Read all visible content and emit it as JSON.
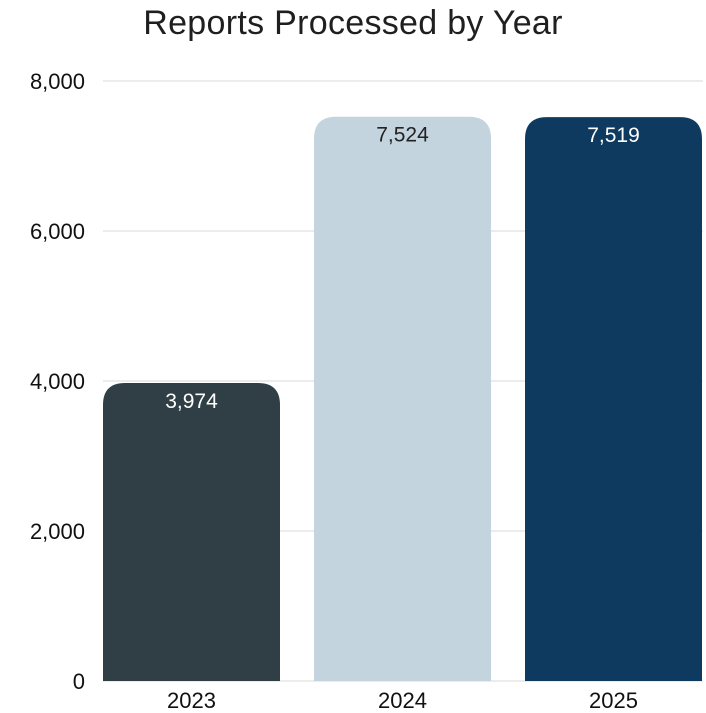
{
  "chart_data": {
    "type": "bar",
    "title": "Reports Processed by Year",
    "categories": [
      "2023",
      "2024",
      "2025"
    ],
    "values": [
      3974,
      7524,
      7519
    ],
    "value_labels": [
      "3,974",
      "7,524",
      "7,519"
    ],
    "bar_colors": [
      "#2f3f45",
      "#c3d4de",
      "#0f3a60"
    ],
    "label_colors": [
      "#ffffff",
      "#222222",
      "#ffffff"
    ],
    "ylim": [
      0,
      8000
    ],
    "yticks": [
      0,
      2000,
      4000,
      6000,
      8000
    ],
    "ytick_labels": [
      "0",
      "2,000",
      "4,000",
      "6,000",
      "8,000"
    ],
    "grid": true,
    "grid_color": "#d9d9d9",
    "legend": "none"
  }
}
